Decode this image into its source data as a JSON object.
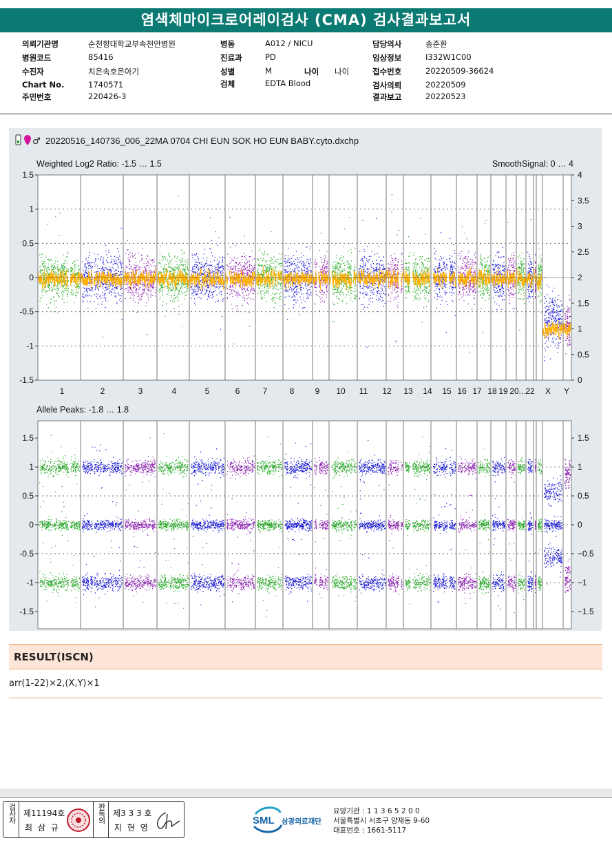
{
  "report": {
    "title": "염색체마이크로어레이검사 (CMA) 검사결과보고서"
  },
  "info": {
    "col1": [
      {
        "label": "의뢰기관명",
        "value": "순천향대학교부속천안병원"
      },
      {
        "label": "병원코드",
        "value": "85416"
      },
      {
        "label": "수진자",
        "value": "치은속호은아기"
      },
      {
        "label": "Chart No.",
        "value": "1740571"
      },
      {
        "label": "주민번호",
        "value": "220426-3"
      }
    ],
    "col2": [
      {
        "label": "병동",
        "value": "A012 / NICU"
      },
      {
        "label": "진료과",
        "value": "PD"
      },
      {
        "label": "성별",
        "value": "M"
      },
      {
        "label": "검체",
        "value": "EDTA Blood"
      }
    ],
    "age": {
      "label": "나이",
      "value": "나이"
    },
    "col3": [
      {
        "label": "담당의사",
        "value": "송준환"
      },
      {
        "label": "임상정보",
        "value": "I332W1C00"
      },
      {
        "label": "접수번호",
        "value": "20220509-36624"
      },
      {
        "label": "검사의뢰",
        "value": "20220509"
      },
      {
        "label": "결과보고",
        "value": "20220523"
      }
    ]
  },
  "plot": {
    "file_name": "20220516_140736_006_22MA 0704 CHI EUN SOK HO EUN BABY.cyto.dxchp",
    "top_title_left": "Weighted Log2 Ratio: -1.5 … 1.5",
    "top_title_right": "SmoothSignal: 0 … 4",
    "bottom_title": "Allele Peaks: -1.8 … 1.8",
    "colors": {
      "green": "#1fa81f",
      "blue": "#1010d8",
      "purple": "#8a1ab0",
      "orange": "#ffb000",
      "panel_bg": "#e4e9ee"
    },
    "top_left_ticks": [
      "1.5",
      "1",
      "0.5",
      "0",
      "-0.5",
      "-1",
      "-1.5"
    ],
    "top_right_ticks": [
      "4",
      "3.5",
      "3",
      "2.5",
      "2",
      "1.5",
      "1",
      "0.5",
      "0"
    ],
    "bottom_ticks": [
      "1.5",
      "1",
      "0.5",
      "0",
      "-0.5",
      "-1",
      "-1.5"
    ],
    "chromosomes": [
      "1",
      "2",
      "3",
      "4",
      "5",
      "6",
      "7",
      "8",
      "9",
      "10",
      "11",
      "12",
      "13",
      "14",
      "15",
      "16",
      "17",
      "18",
      "19",
      "20",
      "21",
      "22",
      "X",
      "Y"
    ],
    "chromosome_labels": [
      "1",
      "2",
      "3",
      "4",
      "5",
      "6",
      "7",
      "8",
      "9",
      "10",
      "11",
      "12",
      "13",
      "14",
      "15",
      "16",
      "17",
      "18",
      "19",
      "20",
      "…",
      "22",
      "X",
      "Y"
    ],
    "chromosome_colors": [
      "green",
      "blue",
      "purple",
      "green",
      "blue",
      "purple",
      "green",
      "blue",
      "purple",
      "green",
      "blue",
      "purple",
      "green",
      "blue",
      "purple",
      "green",
      "blue",
      "purple",
      "green",
      "blue",
      "purple",
      "green",
      "blue",
      "purple"
    ]
  },
  "result": {
    "header": "RESULT(ISCN)",
    "text": "arr(1-22)×2,(X,Y)×1"
  },
  "signatures": {
    "left_vertical": "검사자",
    "left_license": "제11194호",
    "left_name": "최 삼 규",
    "right_vertical": "판독의",
    "right_license": "제3 3 3 호",
    "right_name": "지 현 영"
  },
  "lab": {
    "logo_text": "SML",
    "name": "삼광의료재단",
    "line1": "요양기관 : 1 1 3 6 5 2 0 0",
    "line2": "서울특별시 서초구 양재동 9-60",
    "line3": "대표번호 : 1661-5117"
  }
}
